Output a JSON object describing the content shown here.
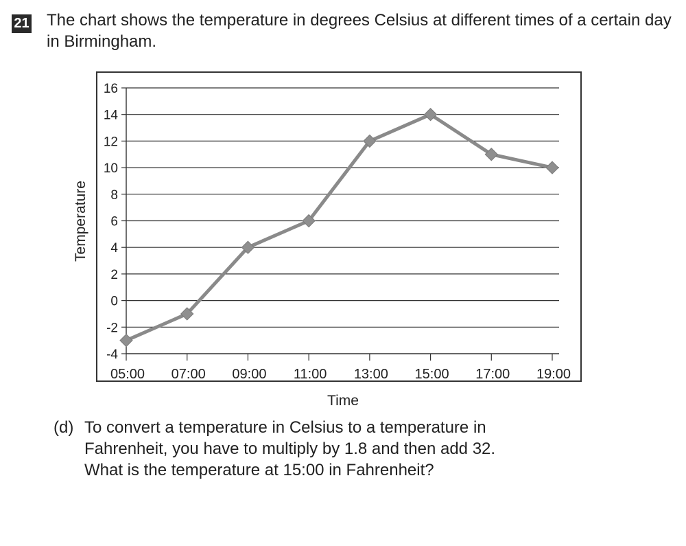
{
  "question": {
    "number": "21",
    "text": "The chart shows the temperature in degrees Celsius at different times of a certain day in Birmingham."
  },
  "chart_data": {
    "type": "line",
    "title": "",
    "xlabel": "Time",
    "ylabel": "Temperature",
    "categories": [
      "05:00",
      "07:00",
      "09:00",
      "11:00",
      "13:00",
      "15:00",
      "17:00",
      "19:00"
    ],
    "series": [
      {
        "values": [
          -3,
          -1,
          4,
          6,
          12,
          14,
          11,
          10
        ]
      }
    ],
    "yticks": [
      16,
      14,
      12,
      10,
      8,
      6,
      4,
      2,
      0,
      -2,
      -4
    ],
    "ylim": [
      -4,
      16
    ],
    "grid": true,
    "marker": "diamond",
    "line_color": "#8a8a8a",
    "marker_color": "#8f8f8f",
    "grid_color": "#333333"
  },
  "part_d": {
    "label": "(d)",
    "lines": [
      "To convert a temperature in Celsius to a temperature in",
      "Fahrenheit, you have to multiply by 1.8 and then add 32.",
      "What is the temperature at 15:00 in Fahrenheit?"
    ]
  }
}
